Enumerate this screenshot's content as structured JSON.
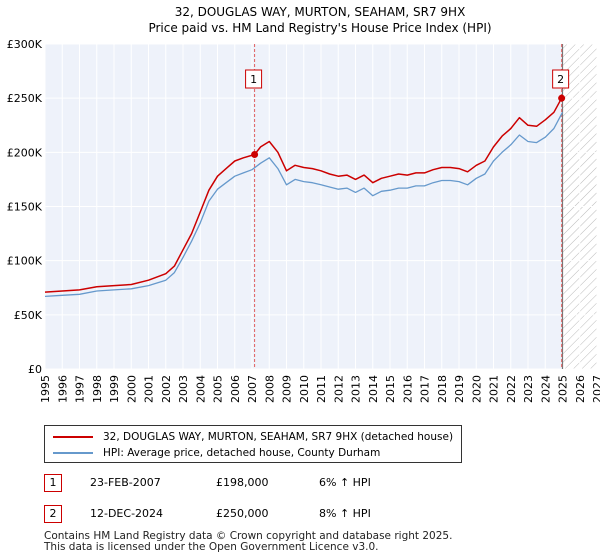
{
  "chart_data": {
    "type": "line",
    "title": "32, DOUGLAS WAY, MURTON, SEAHAM, SR7 9HX",
    "subtitle": "Price paid vs. HM Land Registry's House Price Index (HPI)",
    "xlabel": "",
    "ylabel": "",
    "xlim": [
      1995,
      2027
    ],
    "ylim": [
      0,
      300000
    ],
    "x_ticks": [
      "1995",
      "1996",
      "1997",
      "1998",
      "1999",
      "2000",
      "2001",
      "2002",
      "2003",
      "2004",
      "2005",
      "2006",
      "2007",
      "2008",
      "2009",
      "2010",
      "2011",
      "2012",
      "2013",
      "2014",
      "2015",
      "2016",
      "2017",
      "2018",
      "2019",
      "2020",
      "2021",
      "2022",
      "2023",
      "2024",
      "2025",
      "2026",
      "2027"
    ],
    "y_ticks": [
      {
        "value": 0,
        "label": "£0"
      },
      {
        "value": 50000,
        "label": "£50K"
      },
      {
        "value": 100000,
        "label": "£100K"
      },
      {
        "value": 150000,
        "label": "£150K"
      },
      {
        "value": 200000,
        "label": "£200K"
      },
      {
        "value": 250000,
        "label": "£250K"
      },
      {
        "value": 300000,
        "label": "£300K"
      }
    ],
    "grid": true,
    "hatched_future_from": 2025,
    "series": [
      {
        "name": "32, DOUGLAS WAY, MURTON, SEAHAM, SR7 9HX (detached house)",
        "color": "#cc0000",
        "x": [
          1995,
          1996,
          1997,
          1998,
          1999,
          2000,
          2001,
          2002,
          2002.5,
          2003,
          2003.5,
          2004,
          2004.5,
          2005,
          2005.5,
          2006,
          2006.5,
          2007.15,
          2007.5,
          2008,
          2008.5,
          2009,
          2009.5,
          2010,
          2010.5,
          2011,
          2011.5,
          2012,
          2012.5,
          2013,
          2013.5,
          2014,
          2014.5,
          2015,
          2015.5,
          2016,
          2016.5,
          2017,
          2017.5,
          2018,
          2018.5,
          2019,
          2019.5,
          2020,
          2020.5,
          2021,
          2021.5,
          2022,
          2022.5,
          2023,
          2023.5,
          2024,
          2024.5,
          2024.95
        ],
        "values": [
          71000,
          72000,
          73000,
          76000,
          77000,
          78000,
          82000,
          88000,
          95000,
          110000,
          125000,
          145000,
          165000,
          178000,
          185000,
          192000,
          195000,
          198000,
          205000,
          210000,
          200000,
          183000,
          188000,
          186000,
          185000,
          183000,
          180000,
          178000,
          179000,
          175000,
          179000,
          172000,
          176000,
          178000,
          180000,
          179000,
          181000,
          181000,
          184000,
          186000,
          186000,
          185000,
          182000,
          188000,
          192000,
          205000,
          215000,
          222000,
          232000,
          225000,
          224000,
          230000,
          237000,
          250000
        ]
      },
      {
        "name": "HPI: Average price, detached house, County Durham",
        "color": "#6699cc",
        "x": [
          1995,
          1996,
          1997,
          1998,
          1999,
          2000,
          2001,
          2002,
          2002.5,
          2003,
          2003.5,
          2004,
          2004.5,
          2005,
          2005.5,
          2006,
          2006.5,
          2007,
          2007.5,
          2008,
          2008.5,
          2009,
          2009.5,
          2010,
          2010.5,
          2011,
          2011.5,
          2012,
          2012.5,
          2013,
          2013.5,
          2014,
          2014.5,
          2015,
          2015.5,
          2016,
          2016.5,
          2017,
          2017.5,
          2018,
          2018.5,
          2019,
          2019.5,
          2020,
          2020.5,
          2021,
          2021.5,
          2022,
          2022.5,
          2023,
          2023.5,
          2024,
          2024.5,
          2025
        ],
        "values": [
          67000,
          68000,
          69000,
          72000,
          73000,
          74000,
          77000,
          82000,
          89000,
          103000,
          118000,
          135000,
          155000,
          166000,
          172000,
          178000,
          181000,
          184000,
          190000,
          195000,
          185000,
          170000,
          175000,
          173000,
          172000,
          170000,
          168000,
          166000,
          167000,
          163000,
          167000,
          160000,
          164000,
          165000,
          167000,
          167000,
          169000,
          169000,
          172000,
          174000,
          174000,
          173000,
          170000,
          176000,
          180000,
          192000,
          200000,
          207000,
          216000,
          210000,
          209000,
          214000,
          222000,
          237000
        ]
      }
    ],
    "sale_markers": [
      {
        "label": "1",
        "x": 2007.15,
        "y": 198000
      },
      {
        "label": "2",
        "x": 2024.95,
        "y": 250000
      }
    ]
  },
  "legend": {
    "property_label": "32, DOUGLAS WAY, MURTON, SEAHAM, SR7 9HX (detached house)",
    "hpi_label": "HPI: Average price, detached house, County Durham",
    "property_color": "#cc0000",
    "hpi_color": "#6699cc"
  },
  "sales": [
    {
      "num": "1",
      "date": "23-FEB-2007",
      "price": "£198,000",
      "hpi": "6% ↑ HPI"
    },
    {
      "num": "2",
      "date": "12-DEC-2024",
      "price": "£250,000",
      "hpi": "8% ↑ HPI"
    }
  ],
  "footer": {
    "line1": "Contains HM Land Registry data © Crown copyright and database right 2025.",
    "line2": "This data is licensed under the Open Government Licence v3.0."
  }
}
